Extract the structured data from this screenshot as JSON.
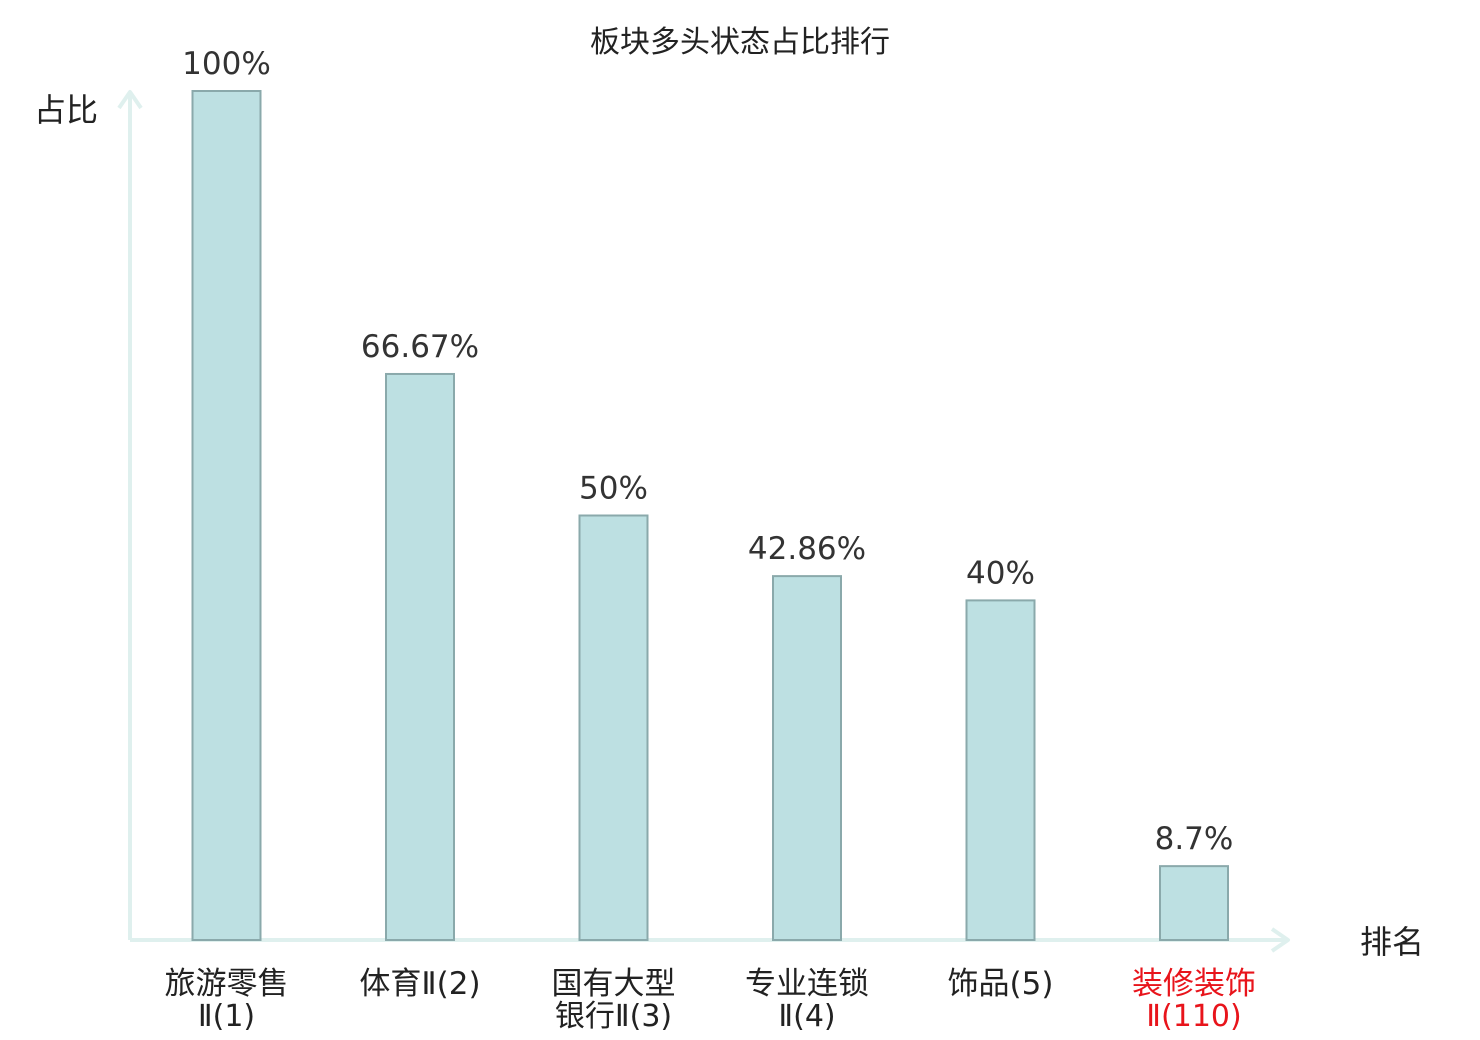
{
  "chart_data": {
    "type": "bar",
    "title": "板块多头状态占比排行",
    "ylabel": "占比",
    "xlabel": "排名",
    "ylim": [
      0,
      100
    ],
    "grid": false,
    "categories": [
      {
        "line1": "旅游零售",
        "line2": "Ⅱ(1)",
        "highlight": false
      },
      {
        "line1": "体育Ⅱ(2)",
        "line2": "",
        "highlight": false
      },
      {
        "line1": "国有大型",
        "line2": "银行Ⅱ(3)",
        "highlight": false
      },
      {
        "line1": "专业连锁",
        "line2": "Ⅱ(4)",
        "highlight": false
      },
      {
        "line1": "饰品(5)",
        "line2": "",
        "highlight": false
      },
      {
        "line1": "装修装饰",
        "line2": "Ⅱ(110)",
        "highlight": true
      }
    ],
    "values": [
      100,
      66.67,
      50,
      42.86,
      40,
      8.7
    ],
    "value_labels": [
      "100%",
      "66.67%",
      "50%",
      "42.86%",
      "40%",
      "8.7%"
    ],
    "colors": {
      "bar_fill": "#bde0e2",
      "bar_stroke": "#8aa9ab",
      "axis": "#dff0ee",
      "highlight_text": "#e8141b",
      "label_text": "#222222"
    }
  }
}
